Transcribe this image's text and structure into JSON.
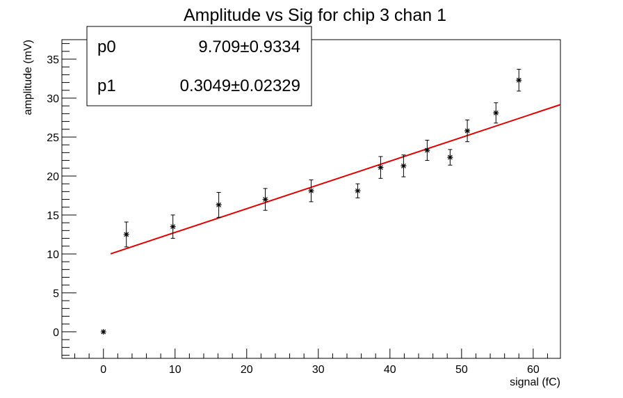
{
  "chart_data": {
    "type": "scatter",
    "title": "Amplitude vs Sig for chip 3 chan 1",
    "xlabel": "signal (fC)",
    "ylabel": "amplitude (mV)",
    "xlim": [
      -5.8,
      63.8
    ],
    "ylim": [
      -3.4,
      37.5
    ],
    "x_ticks": [
      0,
      10,
      20,
      30,
      40,
      50,
      60
    ],
    "y_ticks": [
      0,
      5,
      10,
      15,
      20,
      25,
      30,
      35
    ],
    "grid": false,
    "points": [
      {
        "x": 0.0,
        "y": 0.0,
        "err": 0.0
      },
      {
        "x": 3.2,
        "y": 12.5,
        "err": 1.6
      },
      {
        "x": 9.7,
        "y": 13.5,
        "err": 1.5
      },
      {
        "x": 16.1,
        "y": 16.3,
        "err": 1.6
      },
      {
        "x": 22.6,
        "y": 17.0,
        "err": 1.4
      },
      {
        "x": 29.0,
        "y": 18.1,
        "err": 1.4
      },
      {
        "x": 35.5,
        "y": 18.1,
        "err": 0.9
      },
      {
        "x": 38.7,
        "y": 21.1,
        "err": 1.4
      },
      {
        "x": 41.9,
        "y": 21.3,
        "err": 1.4
      },
      {
        "x": 45.2,
        "y": 23.3,
        "err": 1.3
      },
      {
        "x": 48.4,
        "y": 22.4,
        "err": 1.0
      },
      {
        "x": 50.8,
        "y": 25.8,
        "err": 1.4
      },
      {
        "x": 54.8,
        "y": 28.1,
        "err": 1.3
      },
      {
        "x": 58.0,
        "y": 32.3,
        "err": 1.4
      }
    ],
    "fit": {
      "color": "#dd0000",
      "p0": 9.709,
      "p1": 0.3049,
      "x_range": [
        1.0,
        63.8
      ]
    },
    "stats": [
      {
        "name": "p0",
        "value": "9.709",
        "error": "0.9334"
      },
      {
        "name": "p1",
        "value": "0.3049",
        "error": "0.02329"
      }
    ],
    "stats_pm": "±",
    "stats_box_position": "top-left"
  }
}
